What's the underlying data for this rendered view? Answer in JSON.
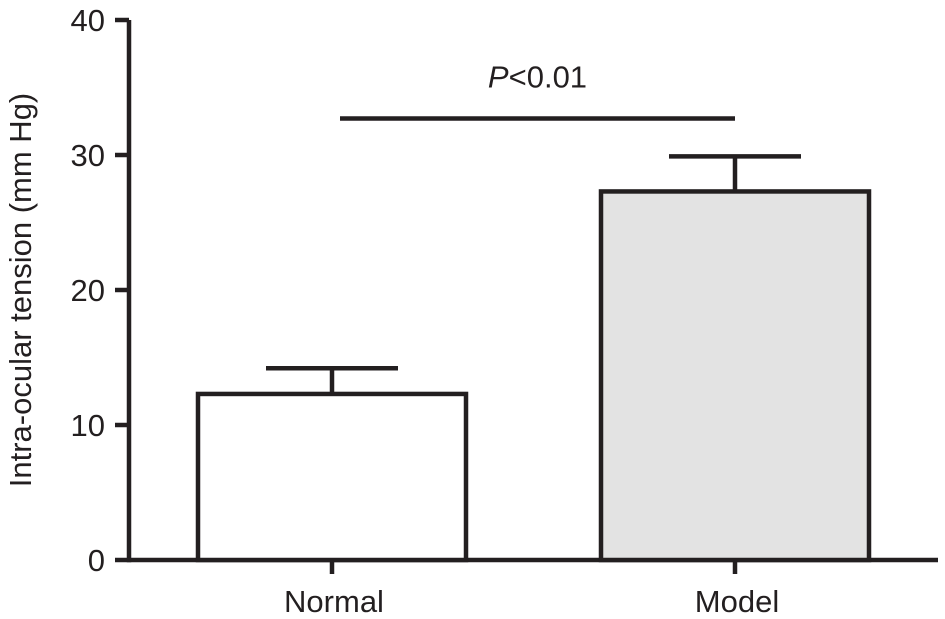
{
  "chart_data": {
    "type": "bar",
    "title": "",
    "xlabel": "",
    "ylabel": "Intra-ocular tension (mm Hg)",
    "ylim": [
      0,
      40
    ],
    "yticks": [
      0,
      10,
      20,
      30,
      40
    ],
    "grid": false,
    "legend": "none",
    "categories": [
      "Normal",
      "Model"
    ],
    "values": [
      12.3,
      27.3
    ],
    "error_upper": [
      1.9,
      2.6
    ],
    "bar_colors": [
      "#ffffff",
      "#e3e3e3"
    ],
    "line_color": "#231f20",
    "annotation": {
      "label_italic": "P",
      "label_rest": "<0.01",
      "level": 32.7,
      "between": [
        "Normal",
        "Model"
      ]
    }
  }
}
